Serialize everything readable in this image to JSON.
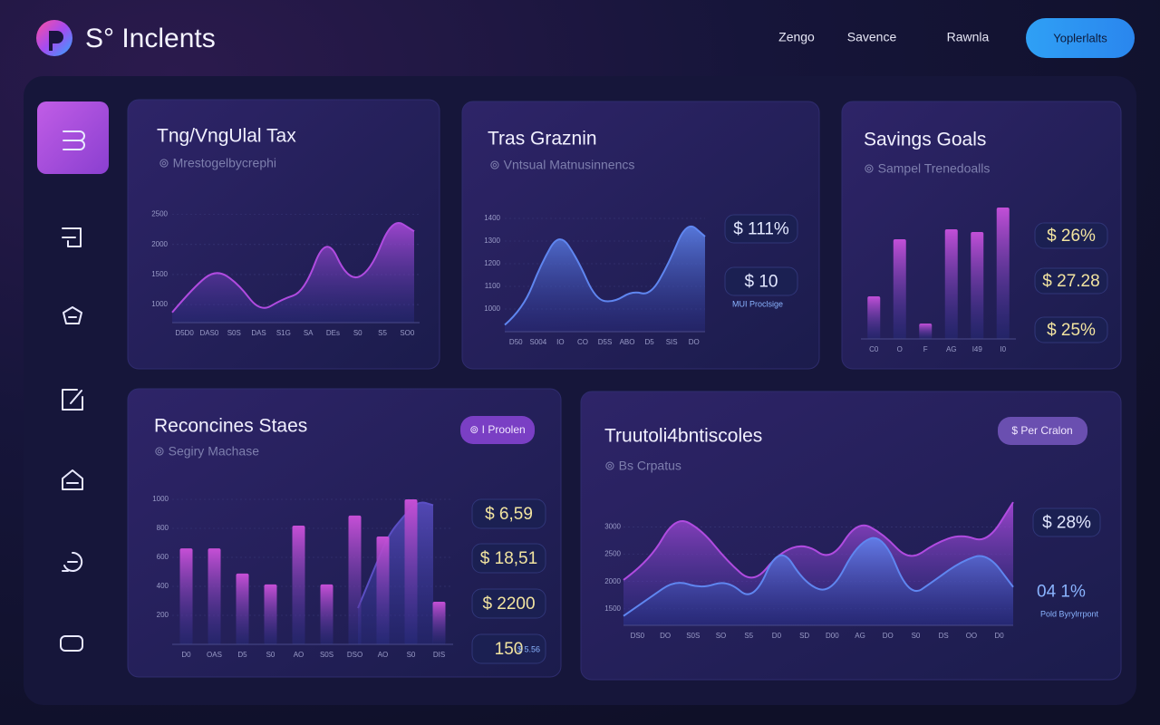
{
  "header": {
    "brand": "S° Inclents",
    "nav": [
      "Zengo",
      "Savence",
      "Rawnla"
    ],
    "button": "Yoplerlalts"
  },
  "panels": [
    {
      "title": "Tng/VngUlal Tax",
      "subtitle": "⊚ Mrestogelbycrephi",
      "chart": {
        "type": "area",
        "ylim": [
          700,
          2600
        ],
        "yticks": [
          1000,
          1500,
          2000,
          2500
        ],
        "xlabels": [
          "D5D0",
          "DAS0",
          "S0S",
          "DAS",
          "S1G",
          "SA",
          "DEs",
          "S0",
          "S5",
          "SO0"
        ],
        "series": [
          {
            "type": "area",
            "color": "#b04be0",
            "values": [
              870,
              1300,
              1590,
              1350,
              870,
              1090,
              1210,
              2180,
              1390,
              1540,
              2450,
              2220
            ]
          }
        ]
      }
    },
    {
      "title": "Tras Graznin",
      "subtitle": "⊚ Vntsual Matnusinnencs",
      "chart": {
        "type": "area",
        "ylim": [
          900,
          1400
        ],
        "yticks": [
          1000,
          1100,
          1200,
          1300,
          1400
        ],
        "xlabels": [
          "D50",
          "S004",
          "IO",
          "CO",
          "D5S",
          "ABO",
          "D5",
          "SIS",
          "DO"
        ],
        "series": [
          {
            "type": "area",
            "color": "#5f86f0",
            "values": [
              930,
              1000,
              1200,
              1340,
              1220,
              1040,
              1030,
              1080,
              1060,
              1200,
              1390,
              1320
            ]
          }
        ]
      },
      "stats": [
        {
          "value": "$ 111%"
        },
        {
          "value": "$ 10",
          "note": "MUI Proclsige"
        }
      ]
    },
    {
      "title": "Savings Goals",
      "subtitle": "⊚ Sampel Trenedoalls",
      "chart": {
        "type": "bar",
        "ylim": [
          0,
          150
        ],
        "xlabels": [
          "C0",
          "O",
          "F",
          "AG",
          "I49",
          "I0"
        ],
        "series": [
          {
            "type": "bar",
            "color": "#c24fd8",
            "values": [
              47,
              110,
              17,
              121,
              118,
              145
            ]
          }
        ]
      },
      "stats": [
        {
          "value": "$ 26%"
        },
        {
          "value": "$ 27.28"
        },
        {
          "value": "$ 25%"
        }
      ]
    },
    {
      "title": "Reconcines Staes",
      "subtitle": "⊚ Segiry Machase",
      "badge": "⊚ I Proolen",
      "chart": {
        "type": "bar",
        "ylim": [
          0,
          1000
        ],
        "yticks": [
          200,
          400,
          600,
          800,
          1000
        ],
        "xlabels": [
          "D0",
          "OAS",
          "D5",
          "S0",
          "AO",
          "S0S",
          "DSO",
          "AO",
          "S0",
          "DIS"
        ],
        "series": [
          {
            "type": "area",
            "color": "#5b4fc4",
            "values": [
              250,
              500,
              750,
              880,
              990,
              960
            ]
          },
          {
            "type": "bar",
            "color": "#c64fd6",
            "values": [
              662,
              662,
              488,
              413,
              819,
              413,
              888,
              744,
              1000,
              294
            ]
          }
        ]
      },
      "stats": [
        {
          "value": "$ 6,59"
        },
        {
          "value": "$ 18,51"
        },
        {
          "value": "$ 2200"
        },
        {
          "value": "150",
          "note": "$ 5.56"
        }
      ]
    },
    {
      "title": "Truutoli4bntiscoles",
      "subtitle": "⊚ Bs Crpatus",
      "badge": "$ Per Cralon",
      "chart": {
        "type": "area",
        "ylim": [
          1200,
          3800
        ],
        "yticks": [
          1500,
          2000,
          2500,
          3000
        ],
        "xlabels": [
          "DS0",
          "DO",
          "S0S",
          "SO",
          "S5",
          "D0",
          "SD",
          "D00",
          "AG",
          "DO",
          "S0",
          "DS",
          "OO",
          "D0"
        ],
        "series": [
          {
            "type": "area",
            "color": "#b04be0",
            "values": [
              2030,
              2370,
              3200,
              2950,
              2370,
              1950,
              2530,
              2700,
              2370,
              3120,
              2870,
              2370,
              2700,
              2870,
              2700,
              3450
            ]
          },
          {
            "type": "area",
            "color": "#5f86f0",
            "values": [
              1370,
              1700,
              2030,
              1870,
              2030,
              1620,
              2700,
              1950,
              1780,
              2700,
              2870,
              1700,
              2030,
              2370,
              2530,
              1900
            ]
          }
        ]
      },
      "stats": [
        {
          "value": "$ 28%"
        },
        {
          "value": "04 1%",
          "note": "Pold Byrylrrpont"
        }
      ]
    }
  ]
}
